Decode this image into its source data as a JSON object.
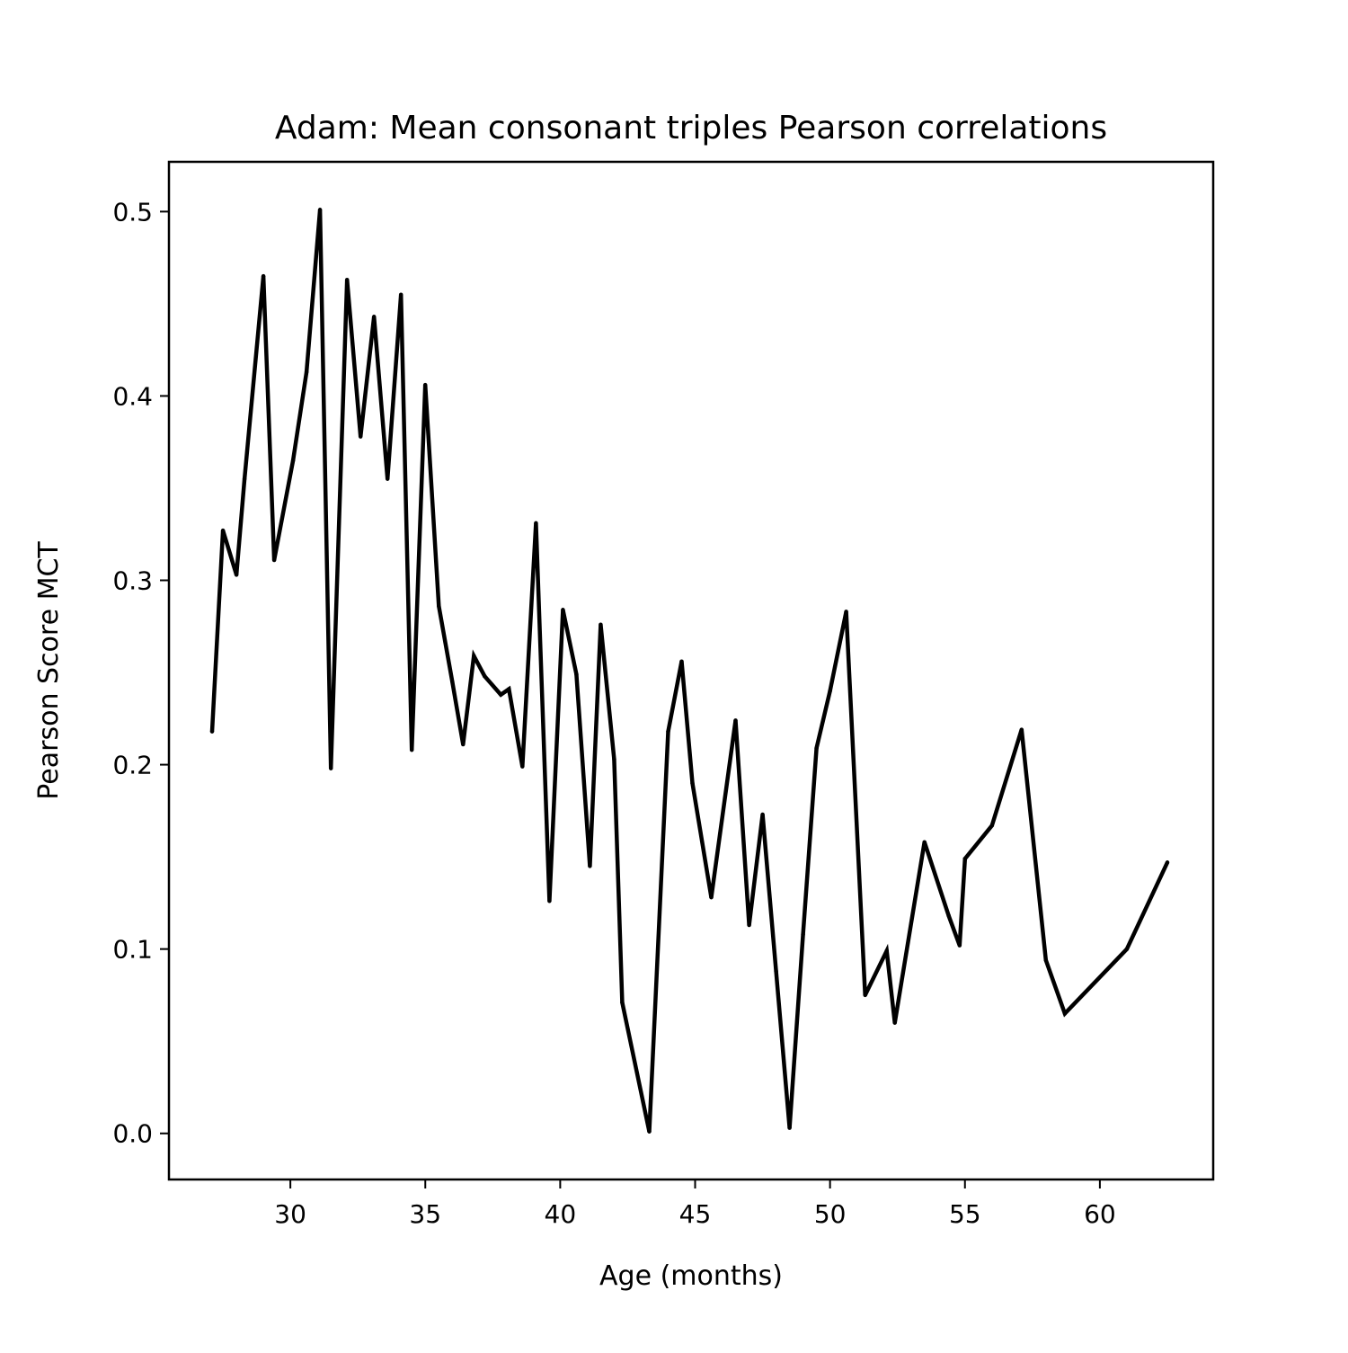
{
  "chart_data": {
    "type": "line",
    "title": "Adam: Mean consonant triples Pearson correlations",
    "xlabel": "Age (months)",
    "ylabel": "Pearson Score MCT",
    "xlim": [
      25.5,
      64.2
    ],
    "ylim": [
      -0.025,
      0.527
    ],
    "xticks": [
      30,
      35,
      40,
      45,
      50,
      55,
      60
    ],
    "yticks": [
      0.0,
      0.1,
      0.2,
      0.3,
      0.4,
      0.5
    ],
    "xtick_labels": [
      "30",
      "35",
      "40",
      "45",
      "50",
      "55",
      "60"
    ],
    "ytick_labels": [
      "0.0",
      "0.1",
      "0.2",
      "0.3",
      "0.4",
      "0.5"
    ],
    "grid": false,
    "legend": false,
    "line_color": "#000000",
    "series": [
      {
        "x": [
          27.1,
          27.5,
          28.0,
          28.3,
          29.0,
          29.4,
          30.1,
          30.6,
          31.1,
          31.5,
          32.1,
          32.6,
          33.1,
          33.6,
          34.1,
          34.5,
          35.0,
          35.5,
          36.0,
          36.4,
          36.8,
          37.2,
          37.8,
          38.1,
          38.6,
          39.1,
          39.6,
          40.1,
          40.6,
          41.1,
          41.5,
          42.0,
          42.3,
          43.3,
          44.0,
          44.5,
          44.9,
          45.6,
          46.5,
          47.0,
          47.5,
          48.0,
          48.5,
          49.0,
          49.5,
          50.0,
          50.6,
          51.3,
          52.1,
          52.4,
          53.5,
          54.4,
          54.8,
          55.0,
          56.0,
          57.1,
          58.0,
          58.7,
          61.0,
          62.5
        ],
        "y": [
          0.218,
          0.327,
          0.303,
          0.355,
          0.465,
          0.311,
          0.365,
          0.413,
          0.501,
          0.198,
          0.463,
          0.378,
          0.443,
          0.355,
          0.455,
          0.208,
          0.406,
          0.286,
          0.245,
          0.211,
          0.259,
          0.248,
          0.238,
          0.241,
          0.199,
          0.331,
          0.126,
          0.284,
          0.249,
          0.145,
          0.276,
          0.203,
          0.071,
          0.001,
          0.218,
          0.256,
          0.19,
          0.128,
          0.224,
          0.113,
          0.173,
          0.088,
          0.003,
          0.108,
          0.209,
          0.24,
          0.283,
          0.075,
          0.099,
          0.06,
          0.158,
          0.118,
          0.102,
          0.149,
          0.167,
          0.219,
          0.094,
          0.065,
          0.1,
          0.147
        ]
      }
    ]
  }
}
